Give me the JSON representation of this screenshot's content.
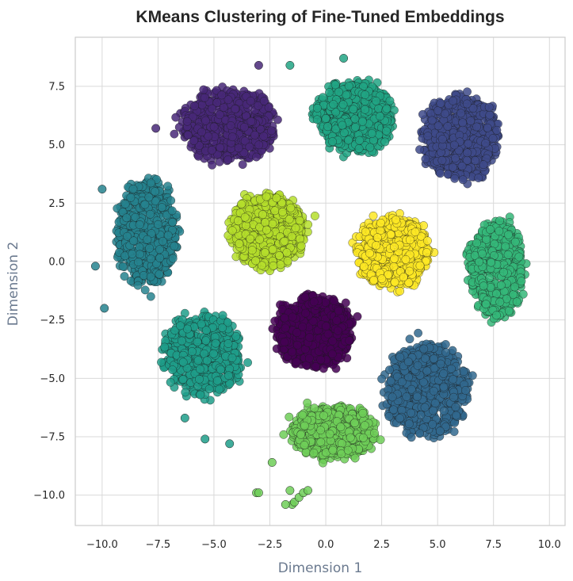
{
  "chart_data": {
    "type": "scatter",
    "title": "KMeans Clustering of Fine-Tuned Embeddings",
    "xlabel": "Dimension 1",
    "ylabel": "Dimension 2",
    "xlim": [
      -11.2,
      10.7
    ],
    "ylim": [
      -11.3,
      9.6
    ],
    "xticks": [
      -10.0,
      -7.5,
      -5.0,
      -2.5,
      0.0,
      2.5,
      5.0,
      7.5,
      10.0
    ],
    "yticks": [
      -10.0,
      -7.5,
      -5.0,
      -2.5,
      0.0,
      2.5,
      5.0,
      7.5
    ],
    "grid": true,
    "legend": "none",
    "colormap": "viridis",
    "marker_edge_color": "#1a1a1a",
    "background_color": "#ffffff",
    "grid_color": "#d9d9d9",
    "spine_color": "#cccccc",
    "clusters": [
      {
        "id": 0,
        "color": "#440154",
        "centroid": [
          -0.5,
          -3.0
        ],
        "spread": [
          1.8,
          1.6
        ],
        "points": 700
      },
      {
        "id": 1,
        "color": "#482878",
        "centroid": [
          -4.3,
          5.8
        ],
        "spread": [
          2.2,
          1.6
        ],
        "points": 650
      },
      {
        "id": 2,
        "color": "#3e4a89",
        "centroid": [
          6.0,
          5.3
        ],
        "spread": [
          1.8,
          1.9
        ],
        "points": 650
      },
      {
        "id": 3,
        "color": "#31688e",
        "centroid": [
          4.5,
          -5.5
        ],
        "spread": [
          1.9,
          2.1
        ],
        "points": 700
      },
      {
        "id": 4,
        "color": "#26828e",
        "centroid": [
          -8.0,
          1.2
        ],
        "spread": [
          1.4,
          2.4
        ],
        "points": 600
      },
      {
        "id": 5,
        "color": "#1f9e89",
        "centroid": [
          -5.5,
          -4.0
        ],
        "spread": [
          1.8,
          1.8
        ],
        "points": 650
      },
      {
        "id": 6,
        "color": "#21a584",
        "centroid": [
          1.3,
          6.2
        ],
        "spread": [
          1.8,
          1.6
        ],
        "points": 650
      },
      {
        "id": 7,
        "color": "#35b779",
        "centroid": [
          7.6,
          -0.3
        ],
        "spread": [
          1.3,
          2.2
        ],
        "points": 550
      },
      {
        "id": 8,
        "color": "#6ece58",
        "centroid": [
          0.3,
          -7.3
        ],
        "spread": [
          2.0,
          1.2
        ],
        "points": 550
      },
      {
        "id": 9,
        "color": "#b5de2b",
        "centroid": [
          -2.6,
          1.3
        ],
        "spread": [
          1.7,
          1.6
        ],
        "points": 700
      },
      {
        "id": 10,
        "color": "#fde725",
        "centroid": [
          3.0,
          0.4
        ],
        "spread": [
          1.7,
          1.6
        ],
        "points": 700
      }
    ],
    "outliers": [
      [
        -3.1,
        -9.9
      ],
      [
        -3.0,
        -9.9
      ],
      [
        -1.5,
        -10.4
      ],
      [
        -1.4,
        -10.3
      ],
      [
        -1.2,
        -10.1
      ],
      [
        -1.0,
        -9.9
      ],
      [
        -0.8,
        -9.8
      ],
      [
        -1.6,
        -9.8
      ],
      [
        -1.8,
        -10.4
      ],
      [
        -2.4,
        -8.6
      ],
      [
        -4.3,
        -7.8
      ],
      [
        -5.4,
        -7.6
      ],
      [
        -6.3,
        -6.7
      ],
      [
        -10.3,
        -0.2
      ],
      [
        -10.0,
        3.1
      ],
      [
        -9.9,
        -2.0
      ],
      [
        -7.6,
        5.7
      ],
      [
        -3.0,
        8.4
      ],
      [
        0.8,
        8.7
      ],
      [
        -1.6,
        8.4
      ]
    ]
  }
}
